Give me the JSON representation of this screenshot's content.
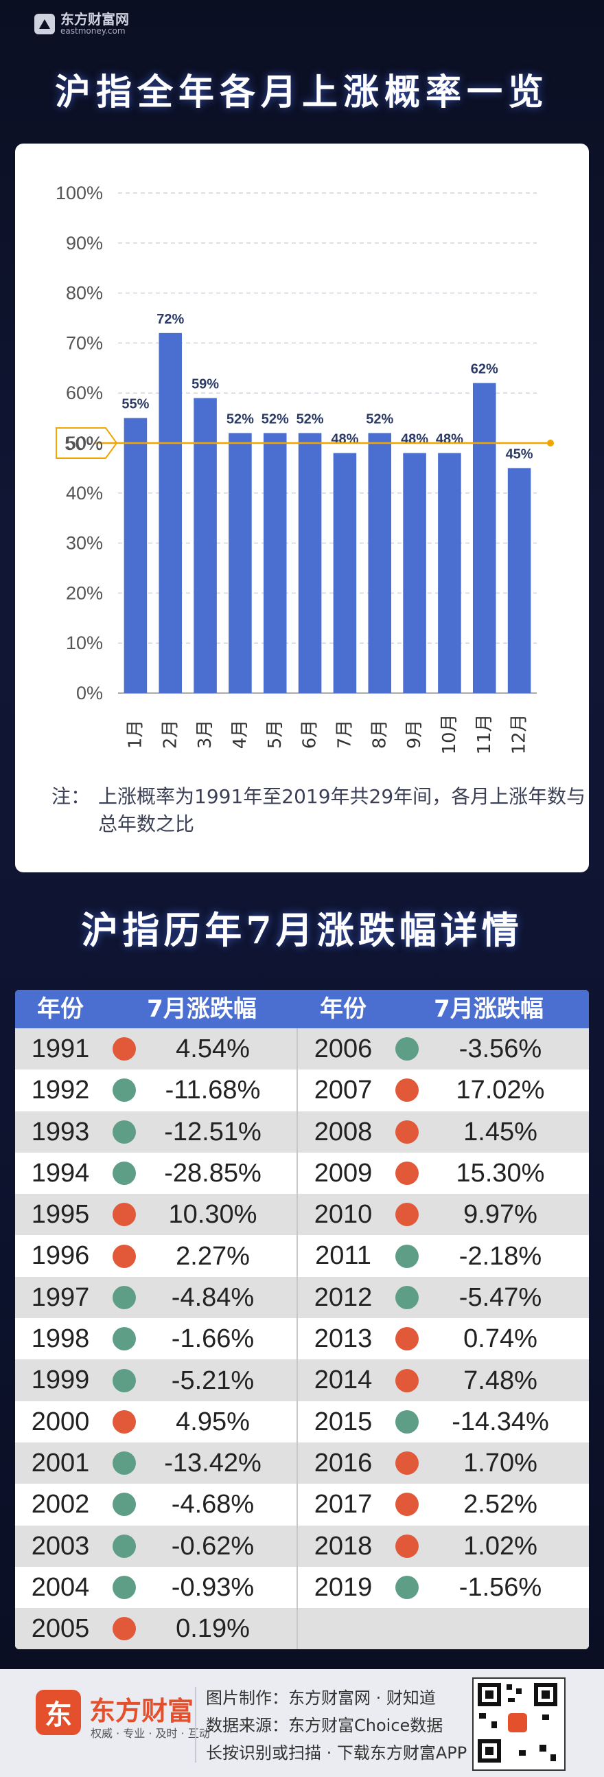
{
  "brand": {
    "name": "东方财富网",
    "url_text": "eastmoney.com"
  },
  "title1": "沪指全年各月上涨概率一览",
  "chart_data": {
    "type": "bar",
    "categories": [
      "1月",
      "2月",
      "3月",
      "4月",
      "5月",
      "6月",
      "7月",
      "8月",
      "9月",
      "10月",
      "11月",
      "12月"
    ],
    "values": [
      55,
      72,
      59,
      52,
      52,
      52,
      48,
      52,
      48,
      48,
      62,
      45
    ],
    "value_labels": [
      "55%",
      "72%",
      "59%",
      "52%",
      "52%",
      "52%",
      "48%",
      "52%",
      "48%",
      "48%",
      "62%",
      "45%"
    ],
    "ylim": [
      0,
      100
    ],
    "yticks": [
      "0%",
      "10%",
      "20%",
      "30%",
      "40%",
      "50%",
      "60%",
      "70%",
      "80%",
      "90%",
      "100%"
    ],
    "reference_line": {
      "value": 50,
      "label": "50%",
      "color": "#f0a500"
    },
    "bar_color": "#4a6fd1",
    "grid": true,
    "xlabel": "",
    "ylabel": "",
    "title": ""
  },
  "note": {
    "label": "注：",
    "text": "上涨概率为1991年至2019年共29年间，各月上涨年数与总年数之比"
  },
  "title2": "沪指历年7月涨跌幅详情",
  "table": {
    "headers": [
      "年份",
      "7月涨跌幅",
      "年份",
      "7月涨跌幅"
    ],
    "rows": [
      {
        "y1": "1991",
        "v1": "4.54%",
        "d1": "up",
        "y2": "2006",
        "v2": "-3.56%",
        "d2": "down"
      },
      {
        "y1": "1992",
        "v1": "-11.68%",
        "d1": "down",
        "y2": "2007",
        "v2": "17.02%",
        "d2": "up"
      },
      {
        "y1": "1993",
        "v1": "-12.51%",
        "d1": "down",
        "y2": "2008",
        "v2": "1.45%",
        "d2": "up"
      },
      {
        "y1": "1994",
        "v1": "-28.85%",
        "d1": "down",
        "y2": "2009",
        "v2": "15.30%",
        "d2": "up"
      },
      {
        "y1": "1995",
        "v1": "10.30%",
        "d1": "up",
        "y2": "2010",
        "v2": "9.97%",
        "d2": "up"
      },
      {
        "y1": "1996",
        "v1": "2.27%",
        "d1": "up",
        "y2": "2011",
        "v2": "-2.18%",
        "d2": "down"
      },
      {
        "y1": "1997",
        "v1": "-4.84%",
        "d1": "down",
        "y2": "2012",
        "v2": "-5.47%",
        "d2": "down"
      },
      {
        "y1": "1998",
        "v1": "-1.66%",
        "d1": "down",
        "y2": "2013",
        "v2": "0.74%",
        "d2": "up"
      },
      {
        "y1": "1999",
        "v1": "-5.21%",
        "d1": "down",
        "y2": "2014",
        "v2": "7.48%",
        "d2": "up"
      },
      {
        "y1": "2000",
        "v1": "4.95%",
        "d1": "up",
        "y2": "2015",
        "v2": "-14.34%",
        "d2": "down"
      },
      {
        "y1": "2001",
        "v1": "-13.42%",
        "d1": "down",
        "y2": "2016",
        "v2": "1.70%",
        "d2": "up"
      },
      {
        "y1": "2002",
        "v1": "-4.68%",
        "d1": "down",
        "y2": "2017",
        "v2": "2.52%",
        "d2": "up"
      },
      {
        "y1": "2003",
        "v1": "-0.62%",
        "d1": "down",
        "y2": "2018",
        "v2": "1.02%",
        "d2": "up"
      },
      {
        "y1": "2004",
        "v1": "-0.93%",
        "d1": "down",
        "y2": "2019",
        "v2": "-1.56%",
        "d2": "down"
      },
      {
        "y1": "2005",
        "v1": "0.19%",
        "d1": "up",
        "y2": "",
        "v2": "",
        "d2": ""
      }
    ],
    "up_color": "#e2593a",
    "down_color": "#5f9e86",
    "header_color": "#4a6fd1"
  },
  "footer": {
    "logo_char": "东",
    "name": "东方财富",
    "slogan": "权威 · 专业 · 及时 · 互动",
    "line1": "图片制作：东方财富网 · 财知道",
    "line2": "数据来源：东方财富Choice数据",
    "line3": "长按识别或扫描 · 下载东方财富APP"
  }
}
